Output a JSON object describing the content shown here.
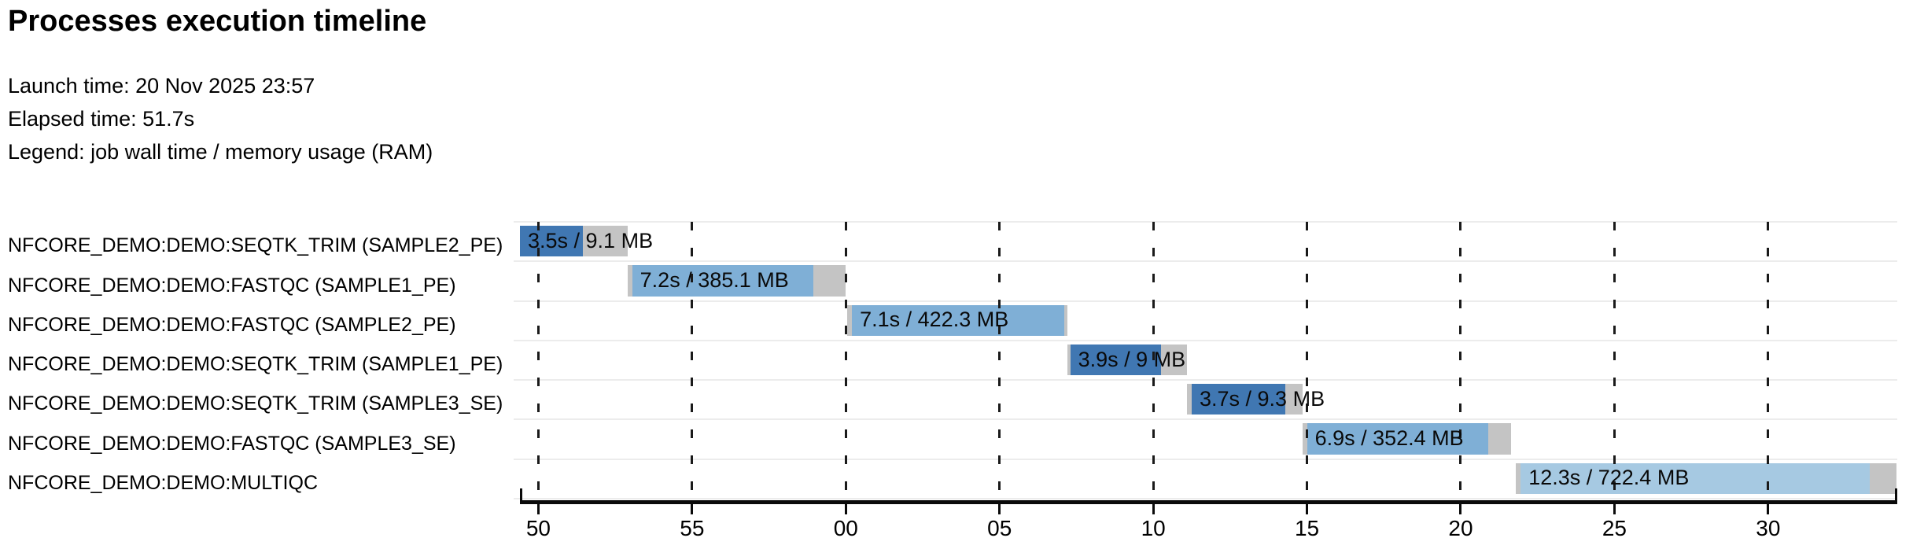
{
  "header": {
    "title": "Processes execution timeline",
    "meta": [
      "Launch time: 20 Nov 2025 23:57",
      "Elapsed time: 51.7s",
      "Legend: job wall time / memory usage (RAM)"
    ]
  },
  "chart_data": {
    "type": "bar",
    "subtype": "gantt-timeline",
    "orientation": "horizontal",
    "title": "Processes execution timeline",
    "legend_note": "job wall time / memory usage (RAM)",
    "x_axis": {
      "unit": "wall-clock seconds (labels wrap at minute boundary 00)",
      "domain_s": [
        49.4,
        94.2
      ],
      "grid": "dashed",
      "ticks": [
        {
          "value": 50,
          "label": "50"
        },
        {
          "value": 55,
          "label": "55"
        },
        {
          "value": 60,
          "label": "00"
        },
        {
          "value": 65,
          "label": "05"
        },
        {
          "value": 70,
          "label": "10"
        },
        {
          "value": 75,
          "label": "15"
        },
        {
          "value": 80,
          "label": "20"
        },
        {
          "value": 85,
          "label": "25"
        },
        {
          "value": 90,
          "label": "30"
        }
      ]
    },
    "colors": {
      "pending_gray": "#c4c4c4",
      "dark_blue": "#4077b2",
      "mid_blue": "#7fafd6",
      "light_blue": "#a6c9e2"
    },
    "tasks": [
      {
        "process": "NFCORE_DEMO:DEMO:SEQTK_TRIM (SAMPLE2_PE)",
        "label": "3.5s / 9.1 MB",
        "wall_time": "3.5s",
        "memory": "9.1 MB",
        "bar_start_s": 49.4,
        "run_start_s": 49.4,
        "run_end_s": 51.45,
        "bar_end_s": 52.9,
        "color": "#4077b2"
      },
      {
        "process": "NFCORE_DEMO:DEMO:FASTQC (SAMPLE1_PE)",
        "label": "7.2s / 385.1 MB",
        "wall_time": "7.2s",
        "memory": "385.1 MB",
        "bar_start_s": 52.9,
        "run_start_s": 53.05,
        "run_end_s": 58.95,
        "bar_end_s": 60.0,
        "color": "#7fafd6"
      },
      {
        "process": "NFCORE_DEMO:DEMO:FASTQC (SAMPLE2_PE)",
        "label": "7.1s / 422.3 MB",
        "wall_time": "7.1s",
        "memory": "422.3 MB",
        "bar_start_s": 60.05,
        "run_start_s": 60.2,
        "run_end_s": 67.1,
        "bar_end_s": 67.2,
        "color": "#7fafd6"
      },
      {
        "process": "NFCORE_DEMO:DEMO:SEQTK_TRIM (SAMPLE1_PE)",
        "label": "3.9s / 9 MB",
        "wall_time": "3.9s",
        "memory": "9 MB",
        "bar_start_s": 67.2,
        "run_start_s": 67.3,
        "run_end_s": 70.25,
        "bar_end_s": 71.1,
        "color": "#4077b2"
      },
      {
        "process": "NFCORE_DEMO:DEMO:SEQTK_TRIM (SAMPLE3_SE)",
        "label": "3.7s / 9.3 MB",
        "wall_time": "3.7s",
        "memory": "9.3 MB",
        "bar_start_s": 71.1,
        "run_start_s": 71.25,
        "run_end_s": 74.3,
        "bar_end_s": 74.85,
        "color": "#4077b2"
      },
      {
        "process": "NFCORE_DEMO:DEMO:FASTQC (SAMPLE3_SE)",
        "label": "6.9s / 352.4 MB",
        "wall_time": "6.9s",
        "memory": "352.4 MB",
        "bar_start_s": 74.85,
        "run_start_s": 75.0,
        "run_end_s": 80.9,
        "bar_end_s": 81.65,
        "color": "#7fafd6"
      },
      {
        "process": "NFCORE_DEMO:DEMO:MULTIQC",
        "label": "12.3s / 722.4 MB",
        "wall_time": "12.3s",
        "memory": "722.4 MB",
        "bar_start_s": 81.8,
        "run_start_s": 81.95,
        "run_end_s": 93.3,
        "bar_end_s": 94.18,
        "color": "#a6c9e2"
      }
    ]
  }
}
